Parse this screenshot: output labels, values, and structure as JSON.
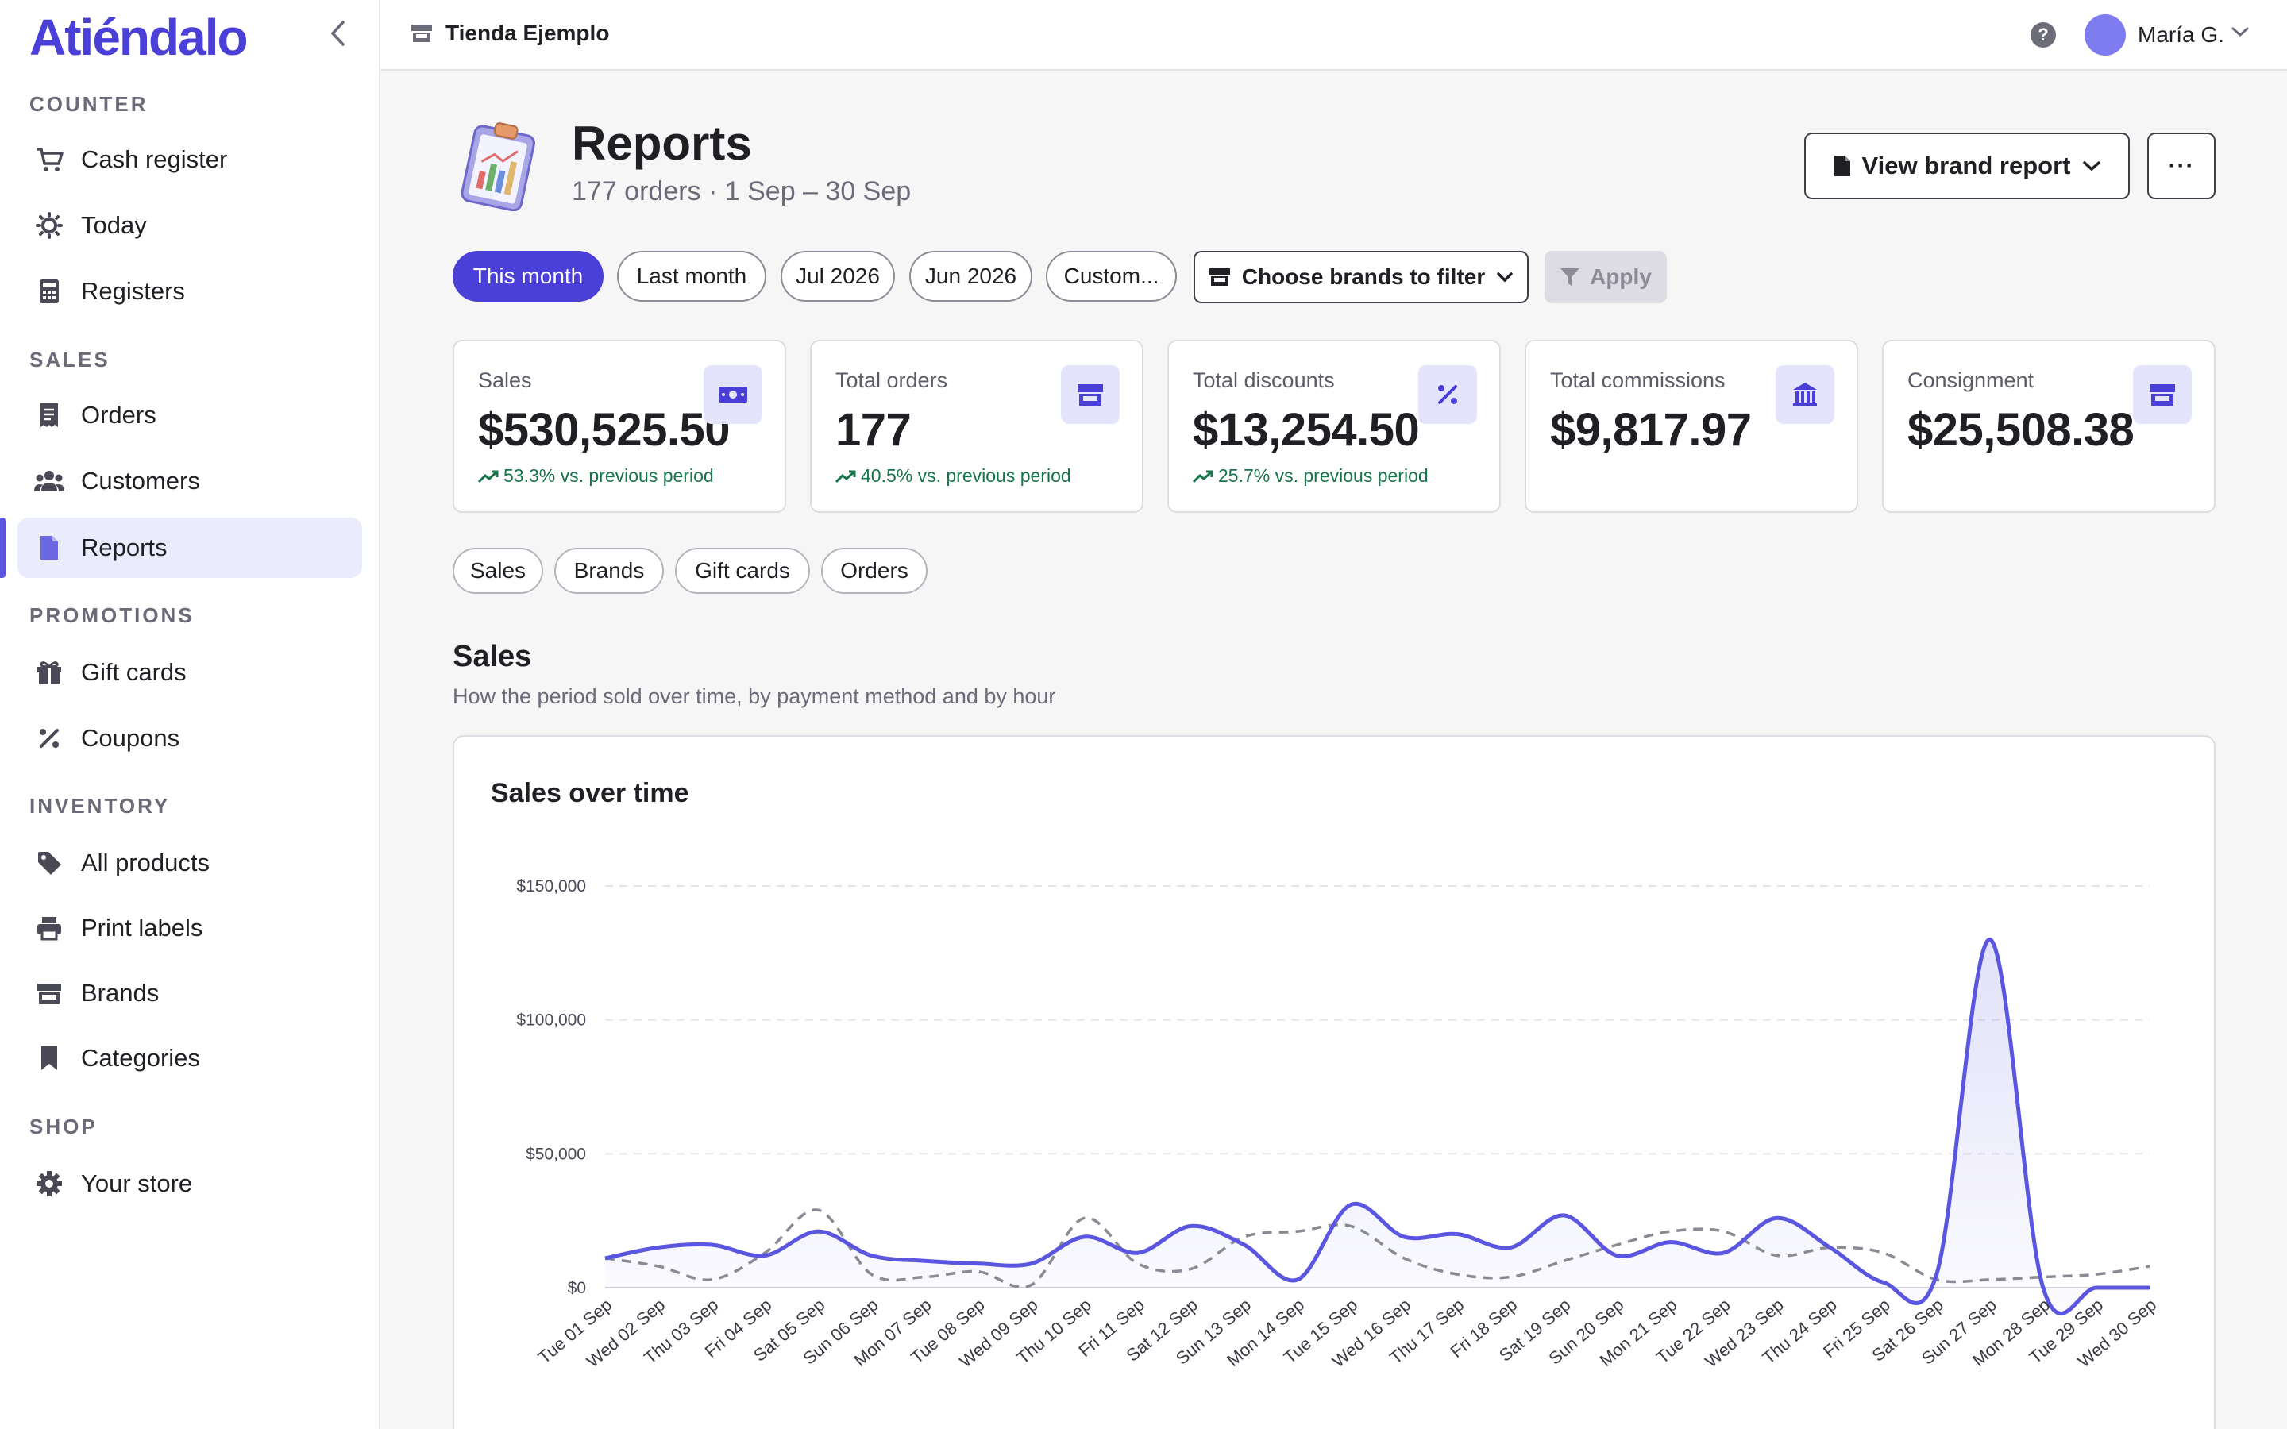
{
  "app": {
    "logo": "Atiéndalo",
    "store_name": "Tienda Ejemplo",
    "user_name": "María G.",
    "help_glyph": "?"
  },
  "sidebar": {
    "sections": [
      {
        "label": "COUNTER"
      },
      {
        "label": "SALES"
      },
      {
        "label": "PROMOTIONS"
      },
      {
        "label": "INVENTORY"
      },
      {
        "label": "SHOP"
      }
    ],
    "items": [
      {
        "label": "Cash register",
        "icon": "cart-icon"
      },
      {
        "label": "Today",
        "icon": "sun-icon"
      },
      {
        "label": "Registers",
        "icon": "calculator-icon"
      },
      {
        "label": "Orders",
        "icon": "receipt-icon"
      },
      {
        "label": "Customers",
        "icon": "users-icon"
      },
      {
        "label": "Reports",
        "icon": "document-icon",
        "active": true
      },
      {
        "label": "Gift cards",
        "icon": "gift-icon"
      },
      {
        "label": "Coupons",
        "icon": "percent-icon"
      },
      {
        "label": "All products",
        "icon": "tag-icon"
      },
      {
        "label": "Print labels",
        "icon": "printer-icon"
      },
      {
        "label": "Brands",
        "icon": "store-icon"
      },
      {
        "label": "Categories",
        "icon": "bookmark-icon"
      },
      {
        "label": "Your store",
        "icon": "gear-icon"
      }
    ]
  },
  "header": {
    "title": "Reports",
    "subtitle": "177 orders · 1 Sep – 30 Sep",
    "brand_report_label": "View brand report",
    "more_label": "···"
  },
  "filters": {
    "periods": [
      {
        "label": "This month",
        "active": true
      },
      {
        "label": "Last month"
      },
      {
        "label": "Jul 2026"
      },
      {
        "label": "Jun 2026"
      },
      {
        "label": "Custom..."
      }
    ],
    "brand_filter_label": "Choose brands to filter",
    "apply_label": "Apply"
  },
  "kpis": [
    {
      "label": "Sales",
      "value": "$530,525.50",
      "delta": "53.3% vs. previous period",
      "icon": "cash-icon"
    },
    {
      "label": "Total orders",
      "value": "177",
      "delta": "40.5% vs. previous period",
      "icon": "store-icon"
    },
    {
      "label": "Total discounts",
      "value": "$13,254.50",
      "delta": "25.7% vs. previous period",
      "icon": "percent-icon"
    },
    {
      "label": "Total commissions",
      "value": "$9,817.97",
      "delta": "",
      "icon": "bank-icon"
    },
    {
      "label": "Consignment",
      "value": "$25,508.38",
      "delta": "",
      "icon": "store-icon"
    }
  ],
  "report_tabs": [
    {
      "label": "Sales"
    },
    {
      "label": "Brands"
    },
    {
      "label": "Gift cards"
    },
    {
      "label": "Orders"
    }
  ],
  "section": {
    "title": "Sales",
    "subtitle": "How the period sold over time, by payment method and by hour"
  },
  "colors": {
    "accent": "#4a3fd6",
    "line_current": "#5b56e0",
    "line_previous": "#8a8a94",
    "positive": "#16734a"
  },
  "chart_data": {
    "type": "line",
    "title": "Sales over time",
    "ylim": [
      0,
      150000
    ],
    "y_ticks": [
      {
        "value": 0,
        "label": "$0"
      },
      {
        "value": 50000,
        "label": "$50,000"
      },
      {
        "value": 100000,
        "label": "$100,000"
      },
      {
        "value": 150000,
        "label": "$150,000"
      }
    ],
    "grid": true,
    "categories": [
      "Tue 01 Sep",
      "Wed 02 Sep",
      "Thu 03 Sep",
      "Fri 04 Sep",
      "Sat 05 Sep",
      "Sun 06 Sep",
      "Mon 07 Sep",
      "Tue 08 Sep",
      "Wed 09 Sep",
      "Thu 10 Sep",
      "Fri 11 Sep",
      "Sat 12 Sep",
      "Sun 13 Sep",
      "Mon 14 Sep",
      "Tue 15 Sep",
      "Wed 16 Sep",
      "Thu 17 Sep",
      "Fri 18 Sep",
      "Sat 19 Sep",
      "Sun 20 Sep",
      "Mon 21 Sep",
      "Tue 22 Sep",
      "Wed 23 Sep",
      "Thu 24 Sep",
      "Fri 25 Sep",
      "Sat 26 Sep",
      "Sun 27 Sep",
      "Mon 28 Sep",
      "Tue 29 Sep",
      "Wed 30 Sep"
    ],
    "series": [
      {
        "style": "solid",
        "values": [
          11000,
          15000,
          16000,
          12000,
          21000,
          12000,
          10000,
          9000,
          9000,
          19000,
          13000,
          23000,
          16000,
          3000,
          31000,
          19000,
          20000,
          15000,
          27000,
          12000,
          17000,
          13000,
          26000,
          15000,
          2000,
          5000,
          130000,
          0,
          0,
          0
        ]
      },
      {
        "style": "dashed",
        "values": [
          11000,
          8000,
          3000,
          13000,
          29000,
          5000,
          4000,
          6000,
          1000,
          26000,
          9000,
          7000,
          19000,
          21000,
          23000,
          11000,
          5000,
          4000,
          10000,
          16000,
          21000,
          21000,
          12000,
          15000,
          13000,
          3000,
          3000,
          4000,
          5000,
          8000
        ]
      }
    ]
  }
}
